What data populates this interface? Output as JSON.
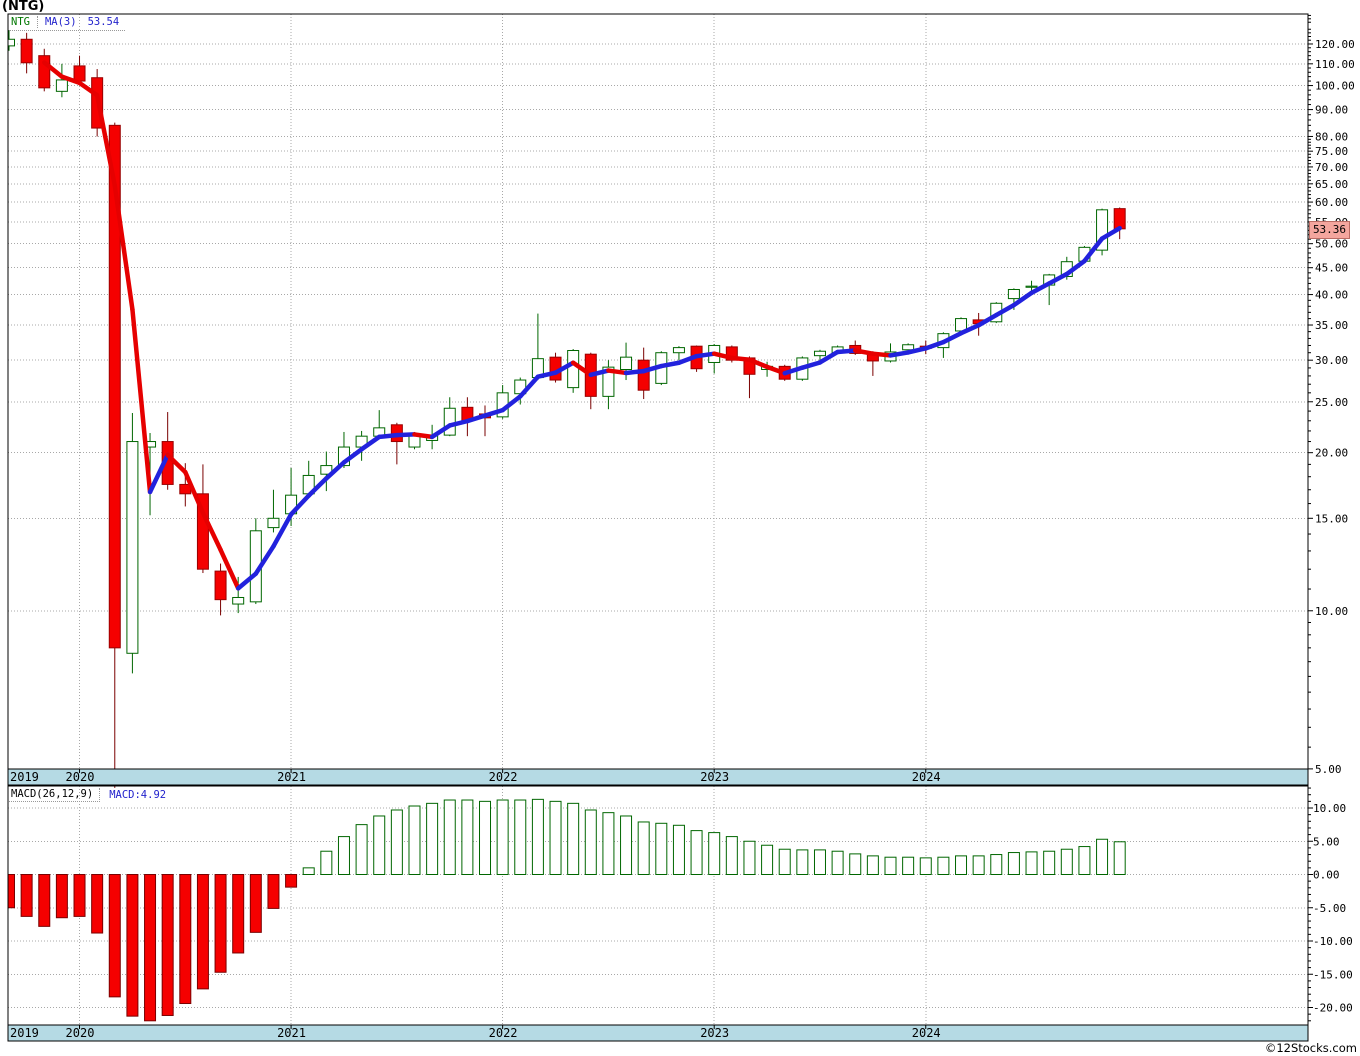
{
  "window_title": "(NTG)",
  "main_legend": {
    "symbol": "NTG",
    "ma_label": "MA(3)",
    "ma_value": "53.54"
  },
  "macd_legend": {
    "label": "MACD(26,12,9)",
    "value_label": "MACD:4.92"
  },
  "price_tag": {
    "value": "53.36"
  },
  "watermark": "©12Stocks.com",
  "x_axis": {
    "years": [
      "2019",
      "2020",
      "2021",
      "2022",
      "2023",
      "2024"
    ]
  },
  "colors": {
    "up": "#006600",
    "up_fill": "#FFFFFF",
    "down": "#990000",
    "down_fill": "#F50000",
    "down_wick": "#7A0000",
    "ma_up": "#2222DD",
    "ma_down": "#E60000",
    "grid": "#A8A8A8",
    "border": "#000000",
    "band_fill": "#B5DAE4",
    "tag_bg": "#F4A69E",
    "tag_border": "#BA6B63",
    "axis_text": "#000000"
  },
  "chart_data": [
    {
      "type": "candlestick",
      "panel": "price",
      "symbol": "NTG",
      "interval": "monthly",
      "last_price": 53.36,
      "ma": {
        "period": 3,
        "label": "MA(3)",
        "last_value": 53.54
      },
      "y_axis": {
        "scale": "log",
        "major_ticks": [
          120,
          110,
          100,
          90,
          80,
          75,
          70,
          65,
          60,
          55,
          50,
          45,
          40,
          35,
          30,
          25,
          20,
          15,
          10,
          5
        ]
      },
      "candles": [
        [
          "2019-09",
          119,
          127.5,
          116.5,
          122.5
        ],
        [
          "2019-10",
          122.5,
          126,
          105.5,
          110.5
        ],
        [
          "2019-11",
          114,
          117.5,
          97.5,
          99
        ],
        [
          "2019-12",
          97.5,
          110,
          95,
          102.5
        ],
        [
          "2020-01",
          109,
          114,
          100,
          102
        ],
        [
          "2020-02",
          103.5,
          107.5,
          80,
          83
        ],
        [
          "2020-03",
          84,
          85,
          4.6,
          8.5
        ],
        [
          "2020-04",
          8.3,
          23.8,
          7.6,
          21
        ],
        [
          "2020-05",
          20.5,
          21.8,
          15.2,
          21
        ],
        [
          "2020-06",
          21,
          23.9,
          17,
          17.4
        ],
        [
          "2020-07",
          17.4,
          19.1,
          15.8,
          16.7
        ],
        [
          "2020-08",
          16.7,
          19,
          11.8,
          12
        ],
        [
          "2020-09",
          11.9,
          12.3,
          9.8,
          10.5
        ],
        [
          "2020-10",
          10.3,
          11.6,
          9.9,
          10.6
        ],
        [
          "2020-11",
          10.4,
          15,
          10.3,
          14.2
        ],
        [
          "2020-12",
          14.4,
          17,
          14.1,
          15
        ],
        [
          "2021-01",
          15.3,
          18.7,
          14.5,
          16.6
        ],
        [
          "2021-02",
          16.7,
          19.3,
          16.5,
          18.1
        ],
        [
          "2021-03",
          18.2,
          20.1,
          16.9,
          18.9
        ],
        [
          "2021-04",
          18.9,
          21.9,
          18.7,
          20.5
        ],
        [
          "2021-05",
          20.5,
          22,
          19.3,
          21.5
        ],
        [
          "2021-06",
          21.5,
          24.1,
          21.3,
          22.3
        ],
        [
          "2021-07",
          22.6,
          22.8,
          19,
          21
        ],
        [
          "2021-08",
          20.5,
          21.9,
          20.3,
          21.7
        ],
        [
          "2021-09",
          21.1,
          22.6,
          20.3,
          21.6
        ],
        [
          "2021-10",
          21.6,
          25.5,
          21.5,
          24.3
        ],
        [
          "2021-11",
          24.4,
          25.5,
          21.5,
          23
        ],
        [
          "2021-12",
          23.7,
          24.6,
          21.5,
          23.3
        ],
        [
          "2022-01",
          23.4,
          26.9,
          23.2,
          26
        ],
        [
          "2022-02",
          25.9,
          27.8,
          24.7,
          27.5
        ],
        [
          "2022-03",
          27.8,
          36.8,
          27.5,
          30.2
        ],
        [
          "2022-04",
          30.4,
          31,
          27.2,
          27.5
        ],
        [
          "2022-05",
          26.6,
          31.5,
          26,
          31.3
        ],
        [
          "2022-06",
          30.8,
          31,
          24.2,
          25.6
        ],
        [
          "2022-07",
          25.6,
          30,
          24.2,
          29.1
        ],
        [
          "2022-08",
          28.8,
          32.4,
          27.5,
          30.4
        ],
        [
          "2022-09",
          30,
          31.7,
          25.3,
          26.3
        ],
        [
          "2022-10",
          27.1,
          31.2,
          26.9,
          31
        ],
        [
          "2022-11",
          31,
          31.9,
          30,
          31.7
        ],
        [
          "2022-12",
          31.9,
          32,
          28.5,
          28.9
        ],
        [
          "2023-01",
          29.7,
          32.2,
          28.3,
          32
        ],
        [
          "2023-02",
          31.8,
          32,
          29.7,
          30
        ],
        [
          "2023-03",
          30.3,
          30.5,
          25.4,
          28.2
        ],
        [
          "2023-04",
          28.8,
          29.8,
          27.9,
          29.2
        ],
        [
          "2023-05",
          29.2,
          29.4,
          27.4,
          27.6
        ],
        [
          "2023-06",
          27.6,
          30.5,
          27.4,
          30.3
        ],
        [
          "2023-07",
          30.6,
          31.4,
          29.8,
          31.2
        ],
        [
          "2023-08",
          31,
          32,
          30.8,
          31.8
        ],
        [
          "2023-09",
          32,
          32.7,
          30.7,
          30.9
        ],
        [
          "2023-10",
          31,
          31.2,
          28,
          29.9
        ],
        [
          "2023-11",
          29.9,
          32.3,
          29.7,
          31.1
        ],
        [
          "2023-12",
          31.4,
          32.3,
          31.2,
          32.1
        ],
        [
          "2024-01",
          31.9,
          32.7,
          30.8,
          31.6
        ],
        [
          "2024-02",
          31.7,
          33.9,
          30.3,
          33.7
        ],
        [
          "2024-03",
          34.1,
          36.2,
          33.9,
          36
        ],
        [
          "2024-04",
          35.8,
          36.9,
          33.4,
          35.2
        ],
        [
          "2024-05",
          35.5,
          38.7,
          35.3,
          38.5
        ],
        [
          "2024-06",
          39.3,
          41.1,
          37.4,
          40.9
        ],
        [
          "2024-07",
          41.3,
          42.5,
          40.2,
          41.5
        ],
        [
          "2024-08",
          41.7,
          43.8,
          38.2,
          43.6
        ],
        [
          "2024-09",
          43.3,
          47.2,
          42.7,
          46.2
        ],
        [
          "2024-10",
          46.3,
          49.5,
          46,
          49.2
        ],
        [
          "2024-11",
          48.6,
          58.3,
          47.5,
          58
        ],
        [
          "2024-12",
          58.3,
          58.6,
          51,
          53.36
        ]
      ]
    },
    {
      "type": "bar",
      "panel": "macd",
      "label": "MACD(26,12,9)",
      "last_value": 4.92,
      "y_axis": {
        "major_ticks": [
          10,
          5,
          0,
          -5,
          -10,
          -15,
          -20
        ]
      },
      "values": [
        -5.0,
        -6.3,
        -7.8,
        -6.5,
        -6.3,
        -8.8,
        -18.4,
        -21.3,
        -22.0,
        -21.2,
        -19.4,
        -17.2,
        -14.7,
        -11.8,
        -8.7,
        -5.1,
        -1.9,
        1.0,
        3.5,
        5.7,
        7.5,
        8.8,
        9.7,
        10.3,
        10.7,
        11.2,
        11.2,
        11.0,
        11.2,
        11.2,
        11.3,
        11.0,
        10.7,
        9.7,
        9.3,
        8.8,
        7.9,
        7.7,
        7.4,
        6.6,
        6.3,
        5.7,
        5.0,
        4.4,
        3.8,
        3.7,
        3.7,
        3.5,
        3.1,
        2.8,
        2.6,
        2.6,
        2.5,
        2.6,
        2.8,
        2.8,
        3.0,
        3.3,
        3.4,
        3.5,
        3.8,
        4.2,
        5.3,
        4.92
      ]
    }
  ]
}
